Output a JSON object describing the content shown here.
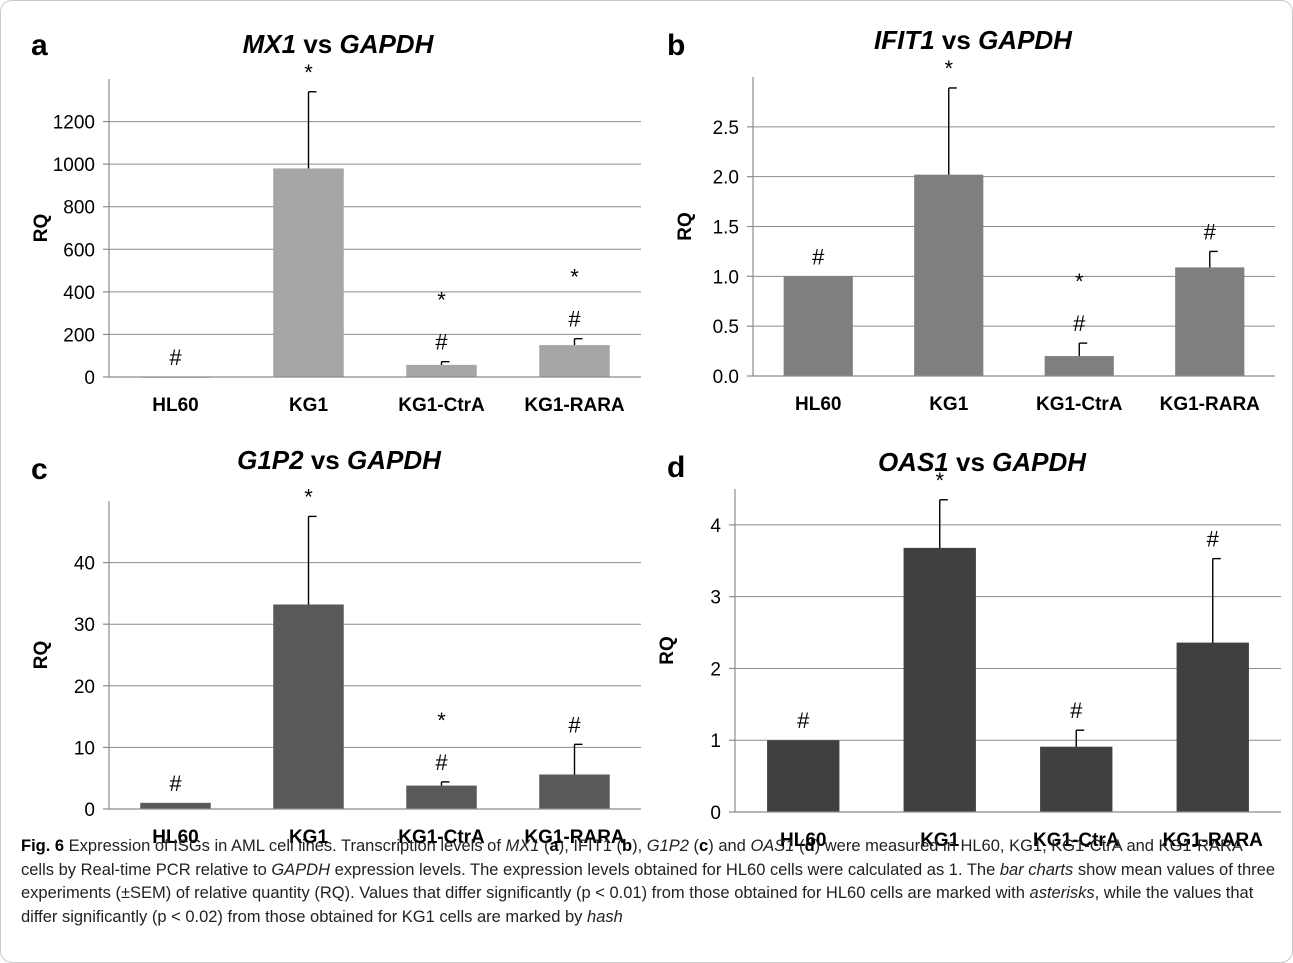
{
  "colors": {
    "panel_a": "#a6a6a6",
    "panel_b": "#7f7f7f",
    "panel_c": "#595959",
    "panel_d": "#404040"
  },
  "chart_data": [
    {
      "type": "bar",
      "panel": "a",
      "title_gene": "MX1",
      "title_rest": " vs ",
      "title_ref": "GAPDH",
      "ylabel": "RQ",
      "categories": [
        "HL60",
        "KG1",
        "KG1-CtrA",
        "KG1-RARA"
      ],
      "values": [
        1,
        980,
        57,
        150
      ],
      "errors": [
        0,
        360,
        15,
        30
      ],
      "ylim": [
        0,
        1400
      ],
      "yticks": [
        0,
        200,
        400,
        600,
        800,
        1000,
        1200
      ],
      "tick_labels": [
        "0",
        "200",
        "400",
        "600",
        "800",
        "1000",
        "1200"
      ],
      "annotations": [
        [
          "#"
        ],
        [
          "*"
        ],
        [
          "*",
          "#"
        ],
        [
          "*",
          "#"
        ]
      ],
      "grid": true
    },
    {
      "type": "bar",
      "panel": "b",
      "title_gene": "IFIT1",
      "title_rest": " vs ",
      "title_ref": "GAPDH",
      "ylabel": "RQ",
      "categories": [
        "HL60",
        "KG1",
        "KG1-CtrA",
        "KG1-RARA"
      ],
      "values": [
        1.0,
        2.02,
        0.2,
        1.09
      ],
      "errors": [
        0,
        0.87,
        0.13,
        0.16
      ],
      "ylim": [
        0,
        3.0
      ],
      "yticks": [
        0,
        0.5,
        1.0,
        1.5,
        2.0,
        2.5
      ],
      "tick_labels": [
        "0.0",
        "0.5",
        "1.0",
        "1.5",
        "2.0",
        "2.5"
      ],
      "annotations": [
        [
          "#"
        ],
        [
          "*"
        ],
        [
          "*",
          "#"
        ],
        [
          "#"
        ]
      ],
      "grid": true
    },
    {
      "type": "bar",
      "panel": "c",
      "title_gene": "G1P2",
      "title_rest": " vs ",
      "title_ref": "GAPDH",
      "ylabel": "RQ",
      "categories": [
        "HL60",
        "KG1",
        "KG1-CtrA",
        "KG1-RARA"
      ],
      "values": [
        1,
        33.2,
        3.8,
        5.6
      ],
      "errors": [
        0,
        14.3,
        0.6,
        4.9
      ],
      "ylim": [
        0,
        50
      ],
      "yticks": [
        0,
        10,
        20,
        30,
        40
      ],
      "tick_labels": [
        "0",
        "10",
        "20",
        "30",
        "40"
      ],
      "annotations": [
        [
          "#"
        ],
        [
          "*"
        ],
        [
          "*",
          "#"
        ],
        [
          "#"
        ]
      ],
      "grid": true
    },
    {
      "type": "bar",
      "panel": "d",
      "title_gene": "OAS1",
      "title_rest": " vs ",
      "title_ref": "GAPDH",
      "ylabel": "RQ",
      "categories": [
        "HL60",
        "KG1",
        "KG1-CtrA",
        "KG1-RARA"
      ],
      "values": [
        1.0,
        3.68,
        0.91,
        2.36
      ],
      "errors": [
        0,
        0.67,
        0.23,
        1.17
      ],
      "ylim": [
        0,
        4.5
      ],
      "yticks": [
        0,
        1,
        2,
        3,
        4
      ],
      "tick_labels": [
        "0",
        "1",
        "2",
        "3",
        "4"
      ],
      "annotations": [
        [
          "#"
        ],
        [
          "*"
        ],
        [
          "#"
        ],
        [
          "#"
        ]
      ],
      "grid": true
    }
  ],
  "caption": {
    "fig_label": "Fig. 6",
    "parts": [
      {
        "t": "  Expression of ISGs in AML cell lines. Transcription levels of ",
        "s": "n"
      },
      {
        "t": "MX1",
        "s": "i"
      },
      {
        "t": " (",
        "s": "n"
      },
      {
        "t": "a",
        "s": "b"
      },
      {
        "t": "), IFIT1 (",
        "s": "n"
      },
      {
        "t": "b",
        "s": "b"
      },
      {
        "t": "), ",
        "s": "n"
      },
      {
        "t": "G1P2",
        "s": "i"
      },
      {
        "t": " (",
        "s": "n"
      },
      {
        "t": "c",
        "s": "b"
      },
      {
        "t": ") and ",
        "s": "n"
      },
      {
        "t": "OAS1",
        "s": "i"
      },
      {
        "t": " (",
        "s": "n"
      },
      {
        "t": "d",
        "s": "b"
      },
      {
        "t": ") were measured in HL60, KG1, KG1-CtrA and KG1-RARA cells by Real-time PCR relative to ",
        "s": "n"
      },
      {
        "t": "GAPDH",
        "s": "i"
      },
      {
        "t": " expression levels. The expression levels obtained for HL60 cells were calculated as 1. The ",
        "s": "n"
      },
      {
        "t": "bar charts",
        "s": "i"
      },
      {
        "t": " show mean values of three experiments (±SEM) of relative quantity (RQ). Values that differ significantly (p < 0.01) from those obtained for HL60 cells are marked with ",
        "s": "n"
      },
      {
        "t": "asterisks",
        "s": "i"
      },
      {
        "t": ", while the values that differ significantly (p < 0.02) from those obtained for KG1 cells are marked by ",
        "s": "n"
      },
      {
        "t": "hash",
        "s": "i"
      }
    ]
  }
}
